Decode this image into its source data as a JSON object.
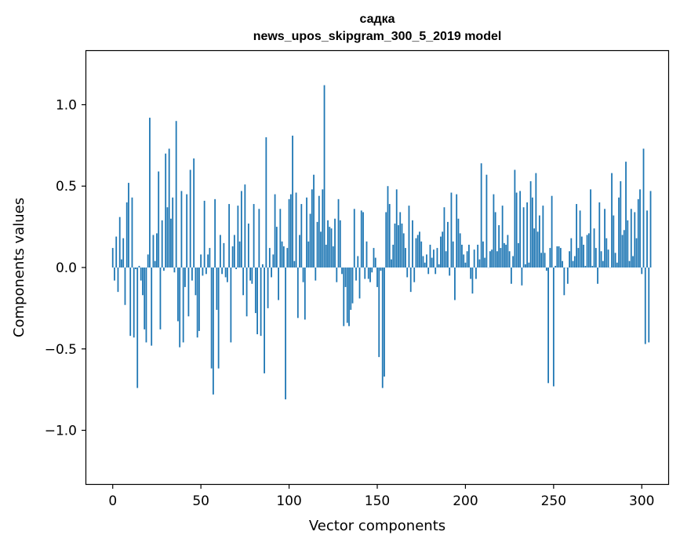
{
  "chart_data": {
    "type": "bar",
    "title": "садка",
    "subtitle": "news_upos_skipgram_300_5_2019 model",
    "xlabel": "Vector components",
    "ylabel": "Components values",
    "xlim": [
      -15,
      315
    ],
    "ylim": [
      -1.33,
      1.33
    ],
    "xticks": [
      0,
      50,
      100,
      150,
      200,
      250,
      300
    ],
    "yticks": [
      -1.0,
      -0.5,
      0.0,
      0.5,
      1.0
    ],
    "ytick_labels": [
      "−1.0",
      "−0.5",
      "0.0",
      "0.5",
      "1.0"
    ],
    "bar_color": "#1f77b4",
    "values": [
      0.12,
      -0.08,
      0.19,
      -0.15,
      0.31,
      0.05,
      0.18,
      -0.23,
      0.4,
      0.52,
      -0.42,
      0.43,
      -0.43,
      -0.01,
      -0.74,
      0.01,
      -0.08,
      -0.17,
      -0.38,
      -0.46,
      0.08,
      0.92,
      -0.48,
      0.2,
      0.04,
      0.21,
      0.59,
      -0.38,
      0.29,
      -0.02,
      0.7,
      0.37,
      0.73,
      0.3,
      0.43,
      -0.03,
      0.9,
      -0.33,
      -0.49,
      0.47,
      -0.46,
      -0.12,
      0.45,
      -0.3,
      0.6,
      -0.08,
      0.67,
      -0.17,
      -0.43,
      -0.39,
      0.08,
      -0.05,
      0.41,
      -0.04,
      0.08,
      0.12,
      -0.62,
      -0.78,
      0.42,
      -0.26,
      -0.62,
      0.2,
      -0.04,
      0.15,
      -0.06,
      -0.09,
      0.39,
      -0.46,
      0.13,
      0.2,
      -0.01,
      0.38,
      0.16,
      0.47,
      -0.17,
      0.51,
      -0.3,
      0.27,
      -0.08,
      -0.1,
      0.39,
      -0.28,
      -0.41,
      0.36,
      -0.42,
      0.02,
      -0.65,
      0.8,
      -0.25,
      0.12,
      -0.06,
      0.08,
      0.45,
      0.25,
      -0.2,
      0.36,
      0.16,
      0.13,
      -0.81,
      0.12,
      0.42,
      0.45,
      0.81,
      0.04,
      0.46,
      -0.31,
      0.2,
      0.39,
      -0.09,
      -0.32,
      0.43,
      0.16,
      0.33,
      0.48,
      0.57,
      -0.08,
      0.28,
      0.44,
      0.22,
      0.48,
      1.12,
      0.14,
      0.29,
      0.25,
      0.24,
      0.13,
      0.3,
      -0.09,
      0.42,
      0.29,
      -0.04,
      -0.36,
      -0.12,
      -0.34,
      -0.36,
      -0.26,
      -0.22,
      0.36,
      -0.08,
      0.07,
      -0.19,
      0.35,
      0.34,
      -0.07,
      0.16,
      -0.07,
      -0.09,
      -0.03,
      0.12,
      0.06,
      -0.12,
      -0.55,
      -0.02,
      -0.74,
      -0.67,
      0.34,
      0.5,
      0.39,
      0.05,
      0.14,
      0.27,
      0.48,
      0.26,
      0.34,
      0.27,
      0.21,
      0.12,
      -0.06,
      0.38,
      -0.15,
      0.29,
      -0.09,
      0.18,
      0.2,
      0.22,
      0.16,
      0.07,
      0.03,
      0.08,
      -0.04,
      0.14,
      0.06,
      0.11,
      -0.04,
      0.12,
      0.02,
      0.19,
      0.22,
      0.37,
      0.1,
      0.28,
      -0.05,
      0.46,
      0.16,
      -0.2,
      0.45,
      0.3,
      0.21,
      0.14,
      0.08,
      0.03,
      0.1,
      0.14,
      -0.07,
      -0.16,
      0.11,
      -0.07,
      0.14,
      0.05,
      0.64,
      0.16,
      0.06,
      0.57,
      0.0,
      0.1,
      0.11,
      0.45,
      0.34,
      0.1,
      0.26,
      0.12,
      0.38,
      0.15,
      0.14,
      0.2,
      0.1,
      -0.1,
      0.07,
      0.6,
      0.46,
      0.15,
      0.47,
      -0.11,
      0.37,
      0.02,
      0.4,
      0.03,
      0.53,
      0.43,
      0.24,
      0.58,
      0.22,
      0.32,
      0.09,
      0.38,
      0.09,
      -0.02,
      -0.71,
      0.12,
      0.44,
      -0.73,
      0.01,
      0.13,
      0.13,
      0.12,
      0.04,
      -0.17,
      0.0,
      -0.1,
      0.1,
      0.18,
      0.04,
      0.07,
      0.39,
      0.12,
      0.35,
      0.19,
      0.14,
      0.01,
      0.2,
      0.21,
      0.48,
      0.01,
      0.24,
      0.12,
      -0.1,
      0.4,
      0.1,
      0.04,
      0.36,
      0.18,
      0.11,
      0.0,
      0.58,
      0.32,
      0.09,
      0.03,
      0.43,
      0.53,
      0.2,
      0.23,
      0.65,
      0.29,
      0.04,
      0.36,
      0.07,
      0.34,
      0.18,
      0.42,
      0.48,
      -0.04,
      0.73,
      -0.47,
      0.35,
      -0.46,
      0.47
    ]
  }
}
